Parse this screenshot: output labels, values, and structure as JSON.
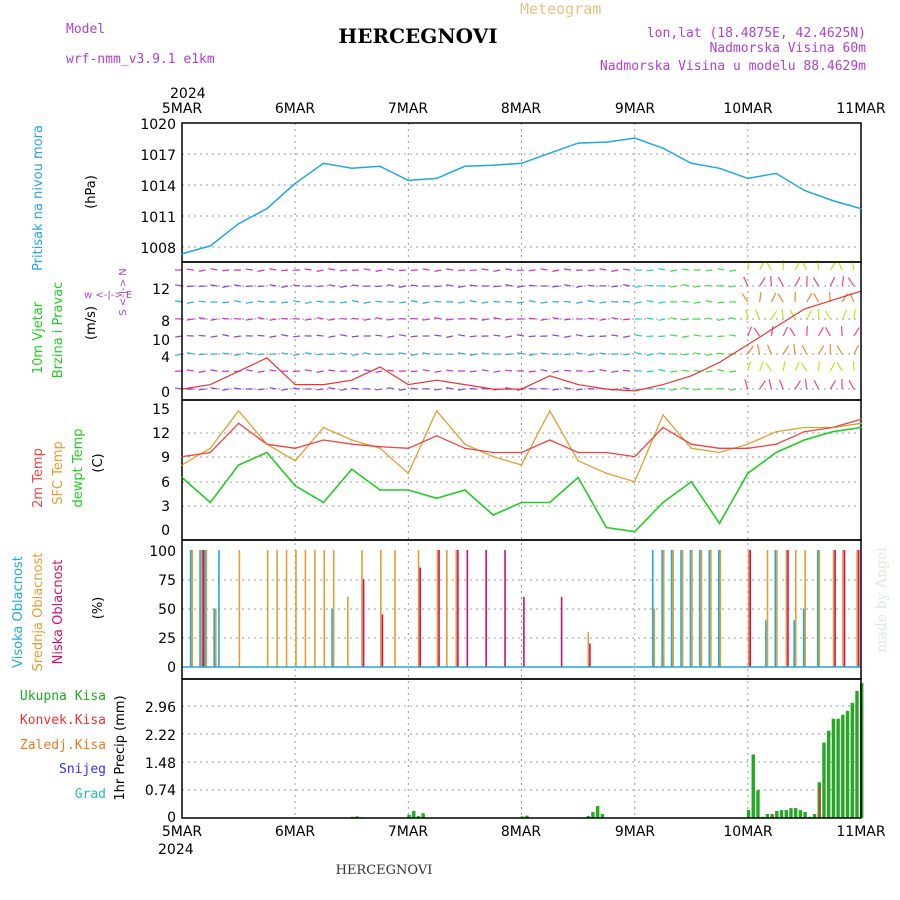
{
  "header": {
    "model_label": "Model",
    "model_name": "wrf-nmm_v3.9.1 e1km",
    "station": "HERCEGNOVI",
    "meteogram": "Meteogram",
    "lonlat": "lon,lat (18.4875E, 42.4625N)",
    "altitude": "Nadmorska Visina 60m",
    "model_altitude": "Nadmorska Visina u modelu 88.4629m",
    "footer_station": "HERCEGNOVI",
    "credit": "made by Angel"
  },
  "time_axis": {
    "year": "2024",
    "dates": [
      "5MAR",
      "6MAR",
      "7MAR",
      "8MAR",
      "9MAR",
      "10MAR",
      "11MAR"
    ]
  },
  "colors": {
    "pressure": "#1fa8e0",
    "temp2m": "#ee4444",
    "sfc": "#e0a030",
    "dew": "#22cc22",
    "high_cloud": "#1fa8e0",
    "mid_cloud": "#e0a030",
    "low_cloud": "#d01070",
    "total": "#22aa22",
    "conv": "#ee3333",
    "frozen": "#ee7722",
    "snow": "#3333ee",
    "hail": "#22bbbb"
  },
  "panels": {
    "pressure": {
      "label": "Pritisak na nivou mora",
      "unit": "(hPa)",
      "ticks": [
        "1020",
        "1017",
        "1014",
        "1011",
        "1008"
      ]
    },
    "wind": {
      "label1": "10m Vjetar",
      "label2": "Brzina i Pravac",
      "unit": "(m/s)",
      "compass": "w <-|-> E",
      "compass2": "S <-|-> N",
      "ticks": [
        "12",
        "8",
        "4",
        "0",
        "10"
      ]
    },
    "temp": {
      "label1": "2m Temp",
      "label2": "SFC Temp",
      "label3": "dewpt Temp",
      "unit": "(C)",
      "ticks": [
        "15",
        "12",
        "9",
        "6",
        "3",
        "0"
      ]
    },
    "cloud": {
      "label1": "Visoka Oblacnost",
      "label2": "Srednja Oblacnost",
      "label3": "Niska Oblacnost",
      "unit": "(%)",
      "ticks": [
        "100",
        "75",
        "50",
        "25",
        "0"
      ]
    },
    "precip": {
      "label": "1hr Precip (mm)",
      "ticks": [
        "2.96",
        "2.22",
        "1.48",
        "0.74",
        "0"
      ],
      "legend": [
        "Ukupna Kisa",
        "Konvek.Kisa",
        "Zaledj.Kisa",
        "Snijeg",
        "Grad"
      ]
    }
  },
  "chart_data": [
    {
      "type": "line",
      "title": "Pritisak na nivou mora",
      "ylabel": "(hPa)",
      "ylim": [
        1007,
        1020
      ],
      "x_hours": [
        0,
        6,
        12,
        18,
        24,
        30,
        36,
        42,
        48,
        54,
        60,
        66,
        72,
        78,
        84,
        90,
        96,
        102,
        108,
        114,
        120,
        126,
        132,
        138,
        144
      ],
      "values": [
        1007.5,
        1008.3,
        1010.5,
        1012.0,
        1014.5,
        1016.5,
        1016.0,
        1016.2,
        1014.8,
        1015.0,
        1016.2,
        1016.3,
        1016.5,
        1017.5,
        1018.5,
        1018.6,
        1019.0,
        1018.0,
        1016.5,
        1016.0,
        1015.0,
        1015.5,
        1013.8,
        1012.8,
        1012.0
      ]
    },
    {
      "type": "line",
      "title": "2m / SFC / dewpt Temp",
      "ylabel": "(C)",
      "ylim": [
        -1,
        15.5
      ],
      "x_hours": [
        0,
        6,
        12,
        18,
        24,
        30,
        36,
        42,
        48,
        54,
        60,
        66,
        72,
        78,
        84,
        90,
        96,
        102,
        108,
        114,
        120,
        126,
        132,
        138,
        144
      ],
      "series": [
        {
          "name": "2m Temp",
          "values": [
            9.0,
            9.5,
            13.0,
            10.5,
            10.0,
            11.0,
            10.5,
            10.2,
            10.0,
            11.5,
            10.0,
            9.5,
            9.5,
            11.0,
            9.5,
            9.5,
            9.0,
            12.5,
            10.5,
            10.0,
            10.0,
            10.5,
            12.0,
            12.5,
            13.5
          ]
        },
        {
          "name": "SFC Temp",
          "values": [
            8.0,
            10.0,
            14.5,
            10.5,
            8.5,
            12.5,
            11.0,
            10.0,
            7.0,
            14.5,
            10.5,
            9.0,
            8.0,
            14.5,
            8.5,
            7.0,
            6.0,
            14.0,
            10.0,
            9.5,
            10.5,
            12.0,
            12.5,
            12.5,
            13.0
          ]
        },
        {
          "name": "dewpt Temp",
          "values": [
            6.5,
            3.5,
            8.0,
            9.5,
            5.5,
            3.5,
            7.5,
            5.0,
            5.0,
            4.0,
            5.0,
            2.0,
            3.5,
            3.5,
            6.5,
            0.5,
            0.0,
            3.5,
            6.0,
            1.0,
            7.0,
            9.5,
            11.0,
            12.0,
            12.5
          ]
        }
      ]
    },
    {
      "type": "bar",
      "title": "Oblacnost",
      "ylabel": "(%)",
      "ylim": [
        0,
        100
      ],
      "x_hours": [
        2,
        4,
        5,
        7,
        8,
        12,
        18,
        20,
        22,
        24,
        26,
        28,
        30,
        32,
        35,
        38,
        42,
        45,
        50,
        54,
        56,
        58,
        60,
        64,
        68,
        72,
        80,
        86,
        100,
        102,
        104,
        106,
        108,
        110,
        112,
        114,
        120,
        124,
        126,
        128,
        130,
        132,
        135,
        138,
        140,
        143
      ],
      "series": [
        {
          "name": "Visoka Oblacnost",
          "values": [
            100,
            100,
            100,
            50,
            100,
            0,
            0,
            0,
            0,
            0,
            0,
            0,
            0,
            50,
            0,
            0,
            0,
            0,
            0,
            0,
            0,
            0,
            0,
            0,
            0,
            0,
            0,
            0,
            100,
            100,
            100,
            100,
            100,
            100,
            100,
            100,
            0,
            40,
            100,
            0,
            40,
            50,
            100,
            0,
            0,
            0
          ]
        },
        {
          "name": "Srednja Oblacnost",
          "values": [
            100,
            100,
            100,
            50,
            0,
            100,
            100,
            100,
            100,
            100,
            100,
            100,
            100,
            100,
            60,
            100,
            100,
            100,
            100,
            100,
            100,
            100,
            0,
            0,
            0,
            0,
            0,
            30,
            50,
            100,
            100,
            100,
            100,
            100,
            100,
            100,
            100,
            100,
            100,
            100,
            100,
            100,
            100,
            100,
            100,
            100
          ]
        },
        {
          "name": "Niska Oblacnost",
          "values": [
            0,
            100,
            0,
            0,
            0,
            0,
            0,
            0,
            0,
            0,
            0,
            0,
            0,
            0,
            0,
            75,
            45,
            0,
            85,
            100,
            0,
            100,
            100,
            100,
            100,
            60,
            60,
            20,
            0,
            0,
            0,
            0,
            0,
            0,
            0,
            0,
            100,
            0,
            0,
            100,
            0,
            0,
            0,
            100,
            100,
            100
          ]
        }
      ]
    },
    {
      "type": "bar",
      "title": "1hr Precip (mm)",
      "ylabel": "(mm)",
      "ylim": [
        0,
        3.4
      ],
      "x_hours": [
        36,
        37,
        38,
        48,
        49,
        50,
        51,
        72,
        73,
        86,
        87,
        88,
        89,
        120,
        121,
        122,
        123,
        124,
        125,
        126,
        127,
        128,
        129,
        130,
        131,
        132,
        133,
        134,
        135,
        136,
        137,
        138,
        139,
        140,
        141,
        142,
        143,
        144
      ],
      "series": [
        {
          "name": "Ukupna Kisa",
          "values": [
            0.03,
            0.04,
            0.02,
            0.08,
            0.18,
            0.05,
            0.12,
            0.04,
            0.06,
            0.05,
            0.15,
            0.3,
            0.1,
            0.2,
            1.6,
            0.7,
            0.03,
            0.1,
            0.1,
            0.18,
            0.2,
            0.2,
            0.25,
            0.25,
            0.2,
            0.15,
            0.03,
            0.1,
            0.9,
            1.9,
            2.2,
            2.5,
            2.5,
            2.6,
            2.7,
            2.9,
            3.2,
            3.4
          ]
        },
        {
          "name": "Konvek.Kisa",
          "values": [
            0,
            0,
            0,
            0,
            0,
            0,
            0,
            0,
            0,
            0,
            0,
            0,
            0,
            0,
            0,
            0,
            0,
            0,
            0.08,
            0,
            0,
            0,
            0,
            0,
            0,
            0,
            0,
            0,
            0.8,
            0,
            0,
            0,
            0,
            0,
            0,
            0,
            0,
            0
          ]
        }
      ]
    }
  ]
}
